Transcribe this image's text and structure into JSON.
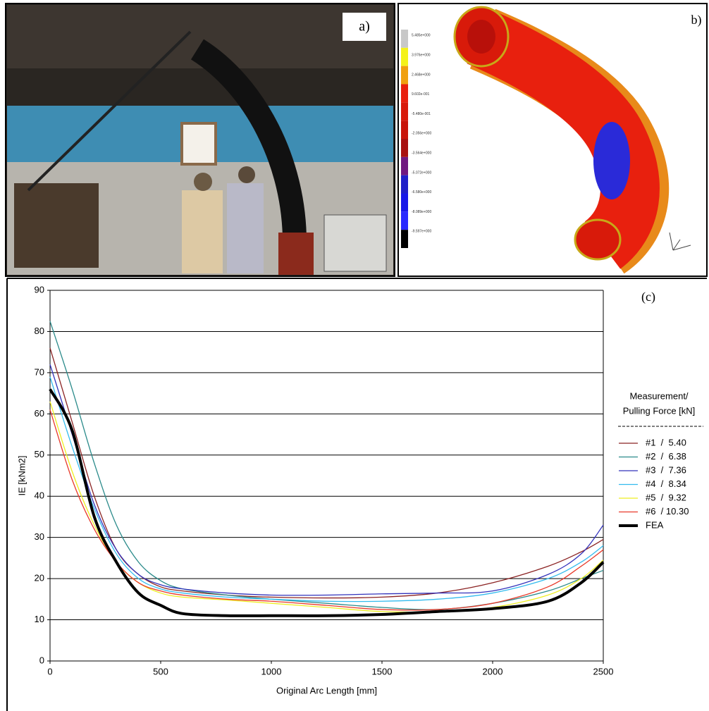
{
  "panel_a": {
    "label": "a)"
  },
  "panel_b": {
    "label": "b)",
    "colorbar": [
      "5.485e+000",
      "3.976e+000",
      "2.468e+000",
      "9.602e-001",
      "-5.480e-001",
      "-2.056e+000",
      "-3.564e+000",
      "-5.072e+000",
      "-6.580e+000",
      "-8.089e+000",
      "-9.597e+000"
    ]
  },
  "chart_data": {
    "type": "line",
    "label": "(c)",
    "x_label": "Original Arc Length [mm]",
    "y_label": "IE [kNm2]",
    "legend_title": [
      "Measurement/",
      "Pulling Force [kN]"
    ],
    "x": [
      0,
      100,
      200,
      300,
      400,
      500,
      600,
      800,
      1000,
      1250,
      1500,
      1750,
      2000,
      2250,
      2400,
      2500
    ],
    "xlim": [
      0,
      2500
    ],
    "xticks": [
      0,
      500,
      1000,
      1500,
      2000,
      2500
    ],
    "ylim": [
      0,
      90
    ],
    "yticks": [
      0,
      10,
      20,
      30,
      40,
      50,
      60,
      70,
      80,
      90
    ],
    "grid": true,
    "series": [
      {
        "name": "#1  /  5.40",
        "color": "#8b2323",
        "values": [
          76,
          58,
          40,
          27,
          21,
          18,
          17,
          16,
          15.5,
          15.3,
          15.5,
          16.5,
          19,
          23,
          26.5,
          29.5
        ]
      },
      {
        "name": "#2  /  6.38",
        "color": "#2a8a8a",
        "values": [
          82.5,
          66,
          48,
          33,
          24,
          19.5,
          17.5,
          16,
          15,
          14,
          13,
          12.5,
          14,
          17,
          20,
          22
        ]
      },
      {
        "name": "#3  /  7.36",
        "color": "#3333bb",
        "values": [
          72,
          55,
          38,
          27,
          21,
          18.5,
          17.5,
          16.5,
          16,
          16,
          16.3,
          16.5,
          17,
          21,
          26,
          33
        ]
      },
      {
        "name": "#4  /  8.34",
        "color": "#33bbee",
        "values": [
          69,
          52,
          37,
          26,
          20,
          17.5,
          16.5,
          15.5,
          15,
          14.5,
          14.5,
          15,
          16.5,
          20,
          24,
          28
        ]
      },
      {
        "name": "#5  /  9.32",
        "color": "#eeee22",
        "values": [
          63,
          46,
          33,
          24,
          19,
          16.5,
          15.5,
          14.8,
          14,
          13,
          12,
          12,
          13,
          16,
          20,
          24.5
        ]
      },
      {
        "name": "#6  / 10.30",
        "color": "#e83a2a",
        "values": [
          61,
          44,
          32,
          24,
          19,
          17,
          16,
          15,
          14.5,
          13.5,
          12.5,
          12.5,
          14,
          18,
          23,
          27
        ]
      },
      {
        "name": "FEA",
        "color": "#000000",
        "values": [
          66,
          56,
          35,
          24,
          16.5,
          13.5,
          11.5,
          11,
          11,
          11,
          11.3,
          12,
          12.7,
          14.5,
          19,
          24
        ]
      }
    ]
  }
}
